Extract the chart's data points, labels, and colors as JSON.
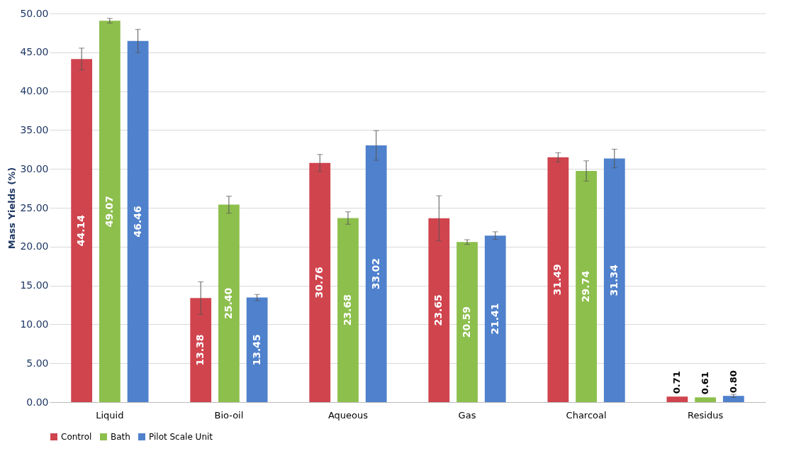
{
  "chart_data": {
    "type": "bar",
    "ylabel": "Mass Yields (%)",
    "categories": [
      "Liquid",
      "Bio-oil",
      "Aqueous",
      "Gas",
      "Charcoal",
      "Residus"
    ],
    "series": [
      {
        "name": "Control",
        "color": "#d0444e",
        "values": [
          44.14,
          13.38,
          30.76,
          23.65,
          31.49,
          0.71
        ],
        "errors": [
          1.4,
          2.1,
          1.1,
          2.9,
          0.6,
          null
        ],
        "value_labels": [
          "44.14",
          "13.38",
          "30.76",
          "23.65",
          "31.49",
          "0.71"
        ]
      },
      {
        "name": "Bath",
        "color": "#8dbf4d",
        "values": [
          49.07,
          25.4,
          23.68,
          20.59,
          29.74,
          0.61
        ],
        "errors": [
          0.3,
          1.1,
          0.8,
          0.3,
          1.3,
          null
        ],
        "value_labels": [
          "49.07",
          "25.40",
          "23.68",
          "20.59",
          "29.74",
          "0.61"
        ]
      },
      {
        "name": "Pilot Scale Unit",
        "color": "#4f81cc",
        "values": [
          46.46,
          13.45,
          33.02,
          21.41,
          31.34,
          0.8
        ],
        "errors": [
          1.5,
          0.4,
          1.9,
          0.5,
          1.2,
          0.2
        ],
        "value_labels": [
          "46.46",
          "13.45",
          "33.02",
          "21.41",
          "31.34",
          "0.80"
        ]
      }
    ],
    "ylim": [
      0,
      50
    ],
    "yticks": [
      {
        "value": 0,
        "label": "0.00"
      },
      {
        "value": 5,
        "label": "5.00"
      },
      {
        "value": 10,
        "label": "10.00"
      },
      {
        "value": 15,
        "label": "15.00"
      },
      {
        "value": 20,
        "label": "20.00"
      },
      {
        "value": 25,
        "label": "25.00"
      },
      {
        "value": 30,
        "label": "30.00"
      },
      {
        "value": 35,
        "label": "35.00"
      },
      {
        "value": 40,
        "label": "40.00"
      },
      {
        "value": 45,
        "label": "45.00"
      },
      {
        "value": 50,
        "label": "50.00"
      }
    ],
    "grid": "y",
    "legend": "bottom"
  }
}
